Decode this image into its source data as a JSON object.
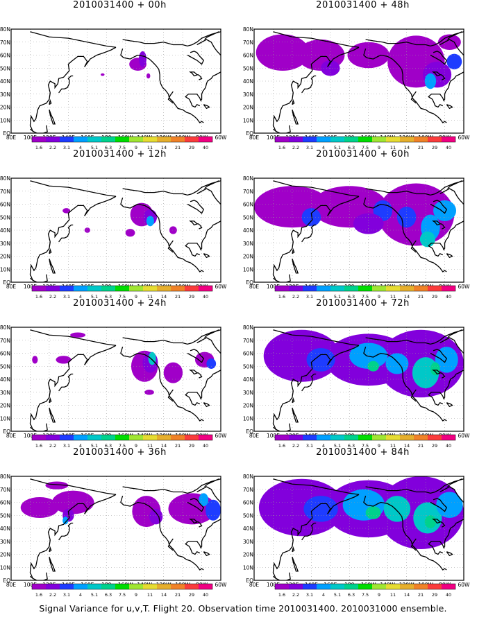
{
  "panels": [
    {
      "title": "2010031400 + 00h",
      "level": 0
    },
    {
      "title": "2010031400 + 12h",
      "level": 1
    },
    {
      "title": "2010031400 + 24h",
      "level": 2
    },
    {
      "title": "2010031400 + 36h",
      "level": 3
    },
    {
      "title": "2010031400 + 48h",
      "level": 4
    },
    {
      "title": "2010031400 + 60h",
      "level": 5
    },
    {
      "title": "2010031400 + 72h",
      "level": 6
    },
    {
      "title": "2010031400 + 84h",
      "level": 7
    }
  ],
  "map": {
    "lat_labels": [
      "80N",
      "70N",
      "60N",
      "50N",
      "40N",
      "30N",
      "20N",
      "10N",
      "EQ"
    ],
    "lon_labels": [
      "80E",
      "100E",
      "120E",
      "140E",
      "160E",
      "180",
      "160W",
      "140W",
      "120W",
      "100W",
      "80W",
      "60W"
    ]
  },
  "colorbar": {
    "labels": [
      "1.6",
      "2.2",
      "3.1",
      "4",
      "5.1",
      "6.3",
      "7.5",
      "9",
      "11",
      "14",
      "21",
      "29",
      "40"
    ],
    "colors": [
      "#a000c8",
      "#8200dc",
      "#1e3cff",
      "#00a0ff",
      "#00c8c8",
      "#00d28c",
      "#00dc00",
      "#a0e632",
      "#e6dc32",
      "#e6af2d",
      "#f08228",
      "#fa3c3c",
      "#f00082"
    ]
  },
  "footer": "Signal Variance for u,v,T. Flight 20. Observation time 2010031400. 2010031000 ensemble."
}
